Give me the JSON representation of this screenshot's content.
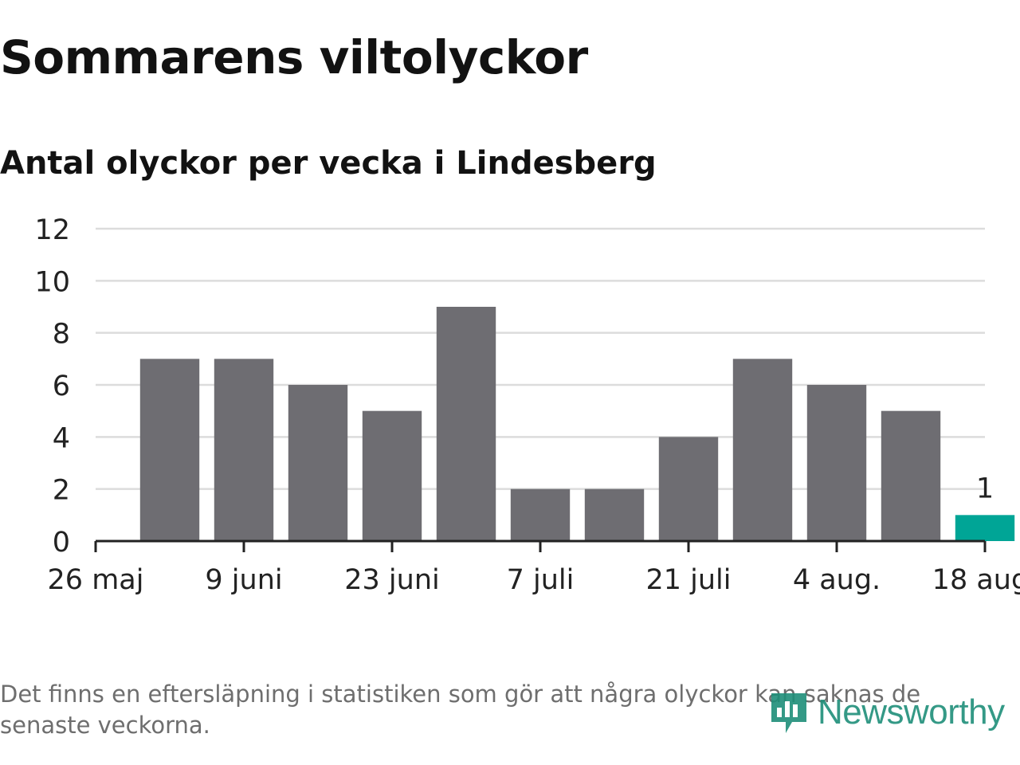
{
  "title": "Sommarens viltolyckor",
  "subtitle": "Antal olyckor per vecka i Lindesberg",
  "footnote": "Det finns en eftersläpning i statistiken som gör att några olyckor kan saknas de senaste veckorna.",
  "logo_text": "Newsworthy",
  "colors": {
    "bar": "#6e6d72",
    "highlight": "#00a596",
    "grid": "#dcdcdc",
    "axis": "#222222",
    "text": "#222222"
  },
  "chart_data": {
    "type": "bar",
    "title": "Sommarens viltolyckor",
    "subtitle": "Antal olyckor per vecka i Lindesberg",
    "xlabel": "",
    "ylabel": "",
    "ylim": [
      0,
      12
    ],
    "yticks": [
      0,
      2,
      4,
      6,
      8,
      10,
      12
    ],
    "x_tick_labels": [
      "26 maj",
      "9 juni",
      "23 juni",
      "7 juli",
      "21 juli",
      "4 aug.",
      "18 aug."
    ],
    "weeks": 12,
    "values": [
      7,
      7,
      6,
      5,
      9,
      2,
      2,
      4,
      7,
      6,
      5,
      1
    ],
    "highlight_index": 11,
    "data_labels": [
      {
        "index": 11,
        "text": "1"
      }
    ],
    "grid": true,
    "legend": "none"
  }
}
